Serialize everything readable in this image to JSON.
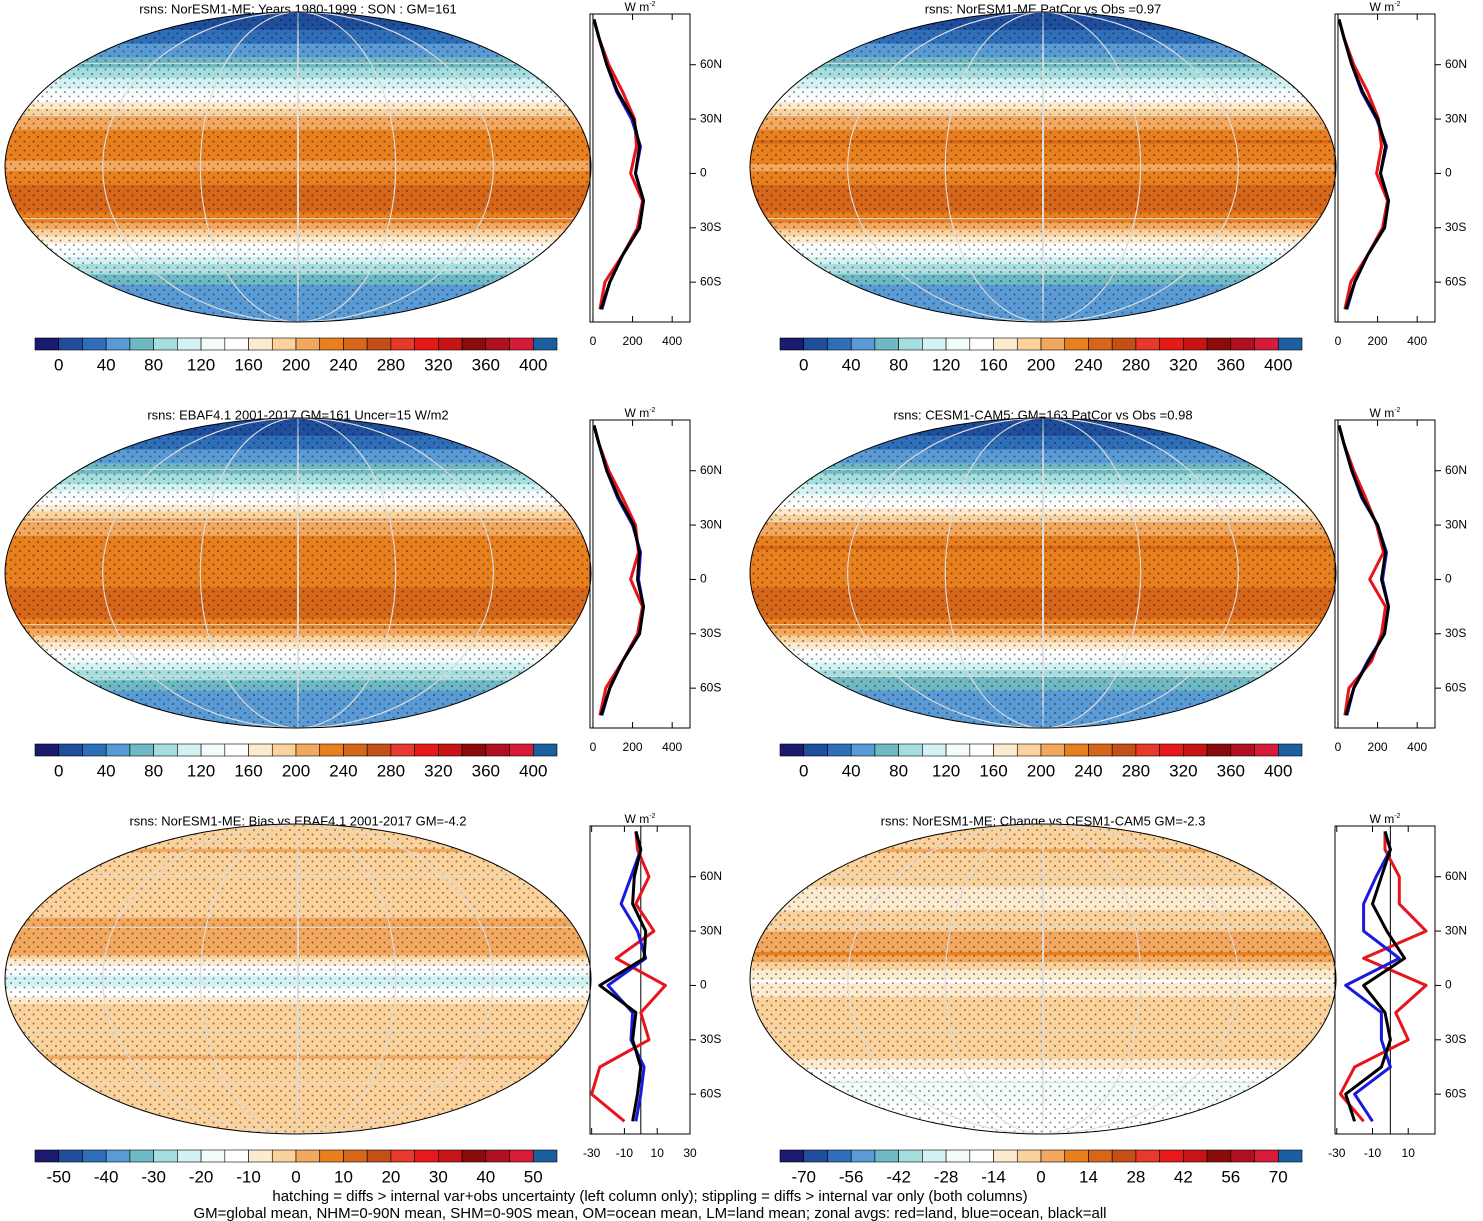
{
  "palette": [
    "#1a1a6e",
    "#1f4e9c",
    "#2f6fba",
    "#5a9bd5",
    "#6fb9c4",
    "#a5dede",
    "#d4f1f3",
    "#f4fbfb",
    "#ffffff",
    "#fdebd0",
    "#fbd29b",
    "#f3a860",
    "#e8801f",
    "#d6671a",
    "#c45018",
    "#e83a2c",
    "#e81919",
    "#c81414",
    "#8b0a0a",
    "#b01020",
    "#d81b38",
    "#1c5fa0"
  ],
  "chart_data": [
    {
      "type": "zonal_map",
      "title": "rsns: NorESM1-ME: Years 1980-1999 : SON : GM=161",
      "units": "W m",
      "units_exp": "-2",
      "lat": [
        -75,
        -60,
        -45,
        -30,
        -15,
        0,
        15,
        30,
        45,
        60,
        75,
        85
      ],
      "series": [
        {
          "name": "land",
          "color": "#e8141c",
          "values": [
            35,
            60,
            150,
            225,
            250,
            190,
            220,
            210,
            150,
            80,
            30,
            5
          ]
        },
        {
          "name": "ocean",
          "color": "#1a1adc",
          "values": [
            45,
            85,
            150,
            235,
            255,
            215,
            240,
            195,
            120,
            70,
            30,
            5
          ]
        },
        {
          "name": "all",
          "color": "#000000",
          "values": [
            40,
            85,
            150,
            235,
            255,
            215,
            235,
            205,
            125,
            70,
            30,
            5
          ]
        }
      ],
      "xlim": [
        -15,
        490
      ],
      "xticks": [
        0,
        200,
        400
      ],
      "ylim": [
        -82,
        88
      ],
      "yticks": [
        {
          "value": 60,
          "label": "60N"
        },
        {
          "value": 30,
          "label": "30N"
        },
        0,
        {
          "value": -30,
          "label": "30S"
        },
        {
          "value": -60,
          "label": "60S"
        }
      ],
      "colorbar_ticks": [
        0,
        40,
        80,
        120,
        160,
        200,
        240,
        280,
        320,
        360,
        400
      ]
    },
    {
      "type": "zonal_map",
      "title": "rsns: NorESM1-ME PatCor vs Obs =0.97",
      "units": "W m",
      "units_exp": "-2",
      "lat": [
        -75,
        -60,
        -45,
        -30,
        -15,
        0,
        15,
        30,
        45,
        60,
        75,
        85
      ],
      "series": [
        {
          "name": "land",
          "color": "#e8141c",
          "values": [
            35,
            65,
            150,
            225,
            250,
            195,
            220,
            205,
            150,
            80,
            30,
            5
          ]
        },
        {
          "name": "ocean",
          "color": "#1a1adc",
          "values": [
            45,
            85,
            150,
            235,
            255,
            215,
            245,
            195,
            120,
            70,
            30,
            5
          ]
        },
        {
          "name": "all",
          "color": "#000000",
          "values": [
            40,
            85,
            150,
            235,
            255,
            215,
            240,
            200,
            125,
            70,
            30,
            5
          ]
        }
      ],
      "xlim": [
        -15,
        490
      ],
      "xticks": [
        0,
        200,
        400
      ],
      "ylim": [
        -82,
        88
      ],
      "yticks": [
        {
          "value": 60,
          "label": "60N"
        },
        {
          "value": 30,
          "label": "30N"
        },
        0,
        {
          "value": -30,
          "label": "30S"
        },
        {
          "value": -60,
          "label": "60S"
        }
      ],
      "colorbar_ticks": [
        0,
        40,
        80,
        120,
        160,
        200,
        240,
        280,
        320,
        360,
        400
      ]
    },
    {
      "type": "zonal_map",
      "title": "rsns: EBAF4.1 2001-2017 GM=161 Uncer=15 W/m2",
      "units": "W m",
      "units_exp": "-2",
      "lat": [
        -75,
        -60,
        -45,
        -30,
        -15,
        0,
        15,
        30,
        45,
        60,
        75,
        85
      ],
      "series": [
        {
          "name": "land",
          "color": "#e8141c",
          "values": [
            35,
            65,
            150,
            225,
            250,
            190,
            230,
            215,
            150,
            80,
            30,
            5
          ]
        },
        {
          "name": "ocean",
          "color": "#1a1adc",
          "values": [
            45,
            85,
            150,
            235,
            255,
            230,
            240,
            200,
            125,
            70,
            30,
            5
          ]
        },
        {
          "name": "all",
          "color": "#000000",
          "values": [
            40,
            85,
            150,
            235,
            255,
            225,
            235,
            205,
            130,
            70,
            30,
            5
          ]
        }
      ],
      "xlim": [
        -15,
        490
      ],
      "xticks": [
        0,
        200,
        400
      ],
      "ylim": [
        -82,
        88
      ],
      "yticks": [
        {
          "value": 60,
          "label": "60N"
        },
        {
          "value": 30,
          "label": "30N"
        },
        0,
        {
          "value": -30,
          "label": "30S"
        },
        {
          "value": -60,
          "label": "60S"
        }
      ],
      "colorbar_ticks": [
        0,
        40,
        80,
        120,
        160,
        200,
        240,
        280,
        320,
        360,
        400
      ]
    },
    {
      "type": "zonal_map",
      "title": "rsns: CESM1-CAM5: GM=163 PatCor vs Obs =0.98",
      "units": "W m",
      "units_exp": "-2",
      "lat": [
        -75,
        -60,
        -45,
        -30,
        -15,
        0,
        15,
        30,
        45,
        60,
        75,
        85
      ],
      "series": [
        {
          "name": "land",
          "color": "#e8141c",
          "values": [
            35,
            55,
            170,
            220,
            240,
            160,
            230,
            195,
            140,
            80,
            30,
            5
          ]
        },
        {
          "name": "ocean",
          "color": "#1a1adc",
          "values": [
            45,
            80,
            150,
            235,
            255,
            225,
            245,
            200,
            120,
            70,
            30,
            5
          ]
        },
        {
          "name": "all",
          "color": "#000000",
          "values": [
            40,
            80,
            155,
            235,
            255,
            220,
            240,
            200,
            125,
            70,
            30,
            5
          ]
        }
      ],
      "xlim": [
        -15,
        490
      ],
      "xticks": [
        0,
        200,
        400
      ],
      "ylim": [
        -82,
        88
      ],
      "yticks": [
        {
          "value": 60,
          "label": "60N"
        },
        {
          "value": 30,
          "label": "30N"
        },
        0,
        {
          "value": -30,
          "label": "30S"
        },
        {
          "value": -60,
          "label": "60S"
        }
      ],
      "colorbar_ticks": [
        0,
        40,
        80,
        120,
        160,
        200,
        240,
        280,
        320,
        360,
        400
      ]
    },
    {
      "type": "zonal_map",
      "title": "rsns: NorESM1-ME: Bias vs EBAF4.1 2001-2017  GM=-4.2",
      "units": "W m",
      "units_exp": "-2",
      "lat": [
        -75,
        -60,
        -45,
        -30,
        -15,
        0,
        15,
        30,
        45,
        60,
        75,
        85
      ],
      "series": [
        {
          "name": "land",
          "color": "#e8141c",
          "values": [
            -10,
            -30,
            -25,
            5,
            0,
            15,
            -15,
            8,
            -3,
            5,
            -2,
            -3
          ]
        },
        {
          "name": "ocean",
          "color": "#1a1adc",
          "values": [
            -3,
            0,
            2,
            -6,
            -5,
            -20,
            3,
            -2,
            -12,
            -6,
            0,
            -3
          ]
        },
        {
          "name": "all",
          "color": "#000000",
          "values": [
            -5,
            -2,
            0,
            -5,
            -3,
            -25,
            2,
            3,
            -5,
            -4,
            0,
            -3
          ]
        }
      ],
      "xlim": [
        -31,
        30
      ],
      "xticks": [
        -30,
        -10,
        10,
        30
      ],
      "ylim": [
        -82,
        88
      ],
      "yticks": [
        {
          "value": 60,
          "label": "60N"
        },
        {
          "value": 30,
          "label": "30N"
        },
        0,
        {
          "value": -30,
          "label": "30S"
        },
        {
          "value": -60,
          "label": "60S"
        }
      ],
      "colorbar_ticks": [
        -50,
        -40,
        -30,
        -20,
        -10,
        0,
        10,
        20,
        30,
        40,
        50
      ]
    },
    {
      "type": "zonal_map",
      "title": "rsns: NorESM1-ME: Change vs CESM1-CAM5 GM=-2.3",
      "units": "W m",
      "units_exp": "-2",
      "lat": [
        -75,
        -60,
        -45,
        -30,
        -15,
        0,
        15,
        30,
        45,
        60,
        75,
        85
      ],
      "series": [
        {
          "name": "land",
          "color": "#e8141c",
          "values": [
            -15,
            -28,
            -20,
            10,
            3,
            20,
            -15,
            20,
            5,
            5,
            -3,
            -3
          ]
        },
        {
          "name": "ocean",
          "color": "#1a1adc",
          "values": [
            -10,
            -20,
            0,
            -5,
            -5,
            -25,
            5,
            -15,
            -15,
            -8,
            0,
            -3
          ]
        },
        {
          "name": "all",
          "color": "#000000",
          "values": [
            -20,
            -25,
            -5,
            0,
            -3,
            -15,
            8,
            -2,
            -10,
            -5,
            0,
            -3
          ]
        }
      ],
      "xlim": [
        -31,
        25
      ],
      "xticks": [
        -30,
        -10,
        10
      ],
      "ylim": [
        -82,
        88
      ],
      "yticks": [
        {
          "value": 60,
          "label": "60N"
        },
        {
          "value": 30,
          "label": "30N"
        },
        0,
        {
          "value": -30,
          "label": "30S"
        },
        {
          "value": -60,
          "label": "60S"
        }
      ],
      "colorbar_ticks": [
        -70,
        -56,
        -42,
        -28,
        -14,
        0,
        14,
        28,
        42,
        56,
        70
      ]
    }
  ],
  "footer": [
    "hatching = diffs > internal var+obs uncertainty (left column only); stippling = diffs > internal var only (both columns)",
    "GM=global mean, NHM=0-90N mean, SHM=0-90S mean, OM=ocean mean, LM=land mean; zonal avgs: red=land, blue=ocean, black=all"
  ]
}
